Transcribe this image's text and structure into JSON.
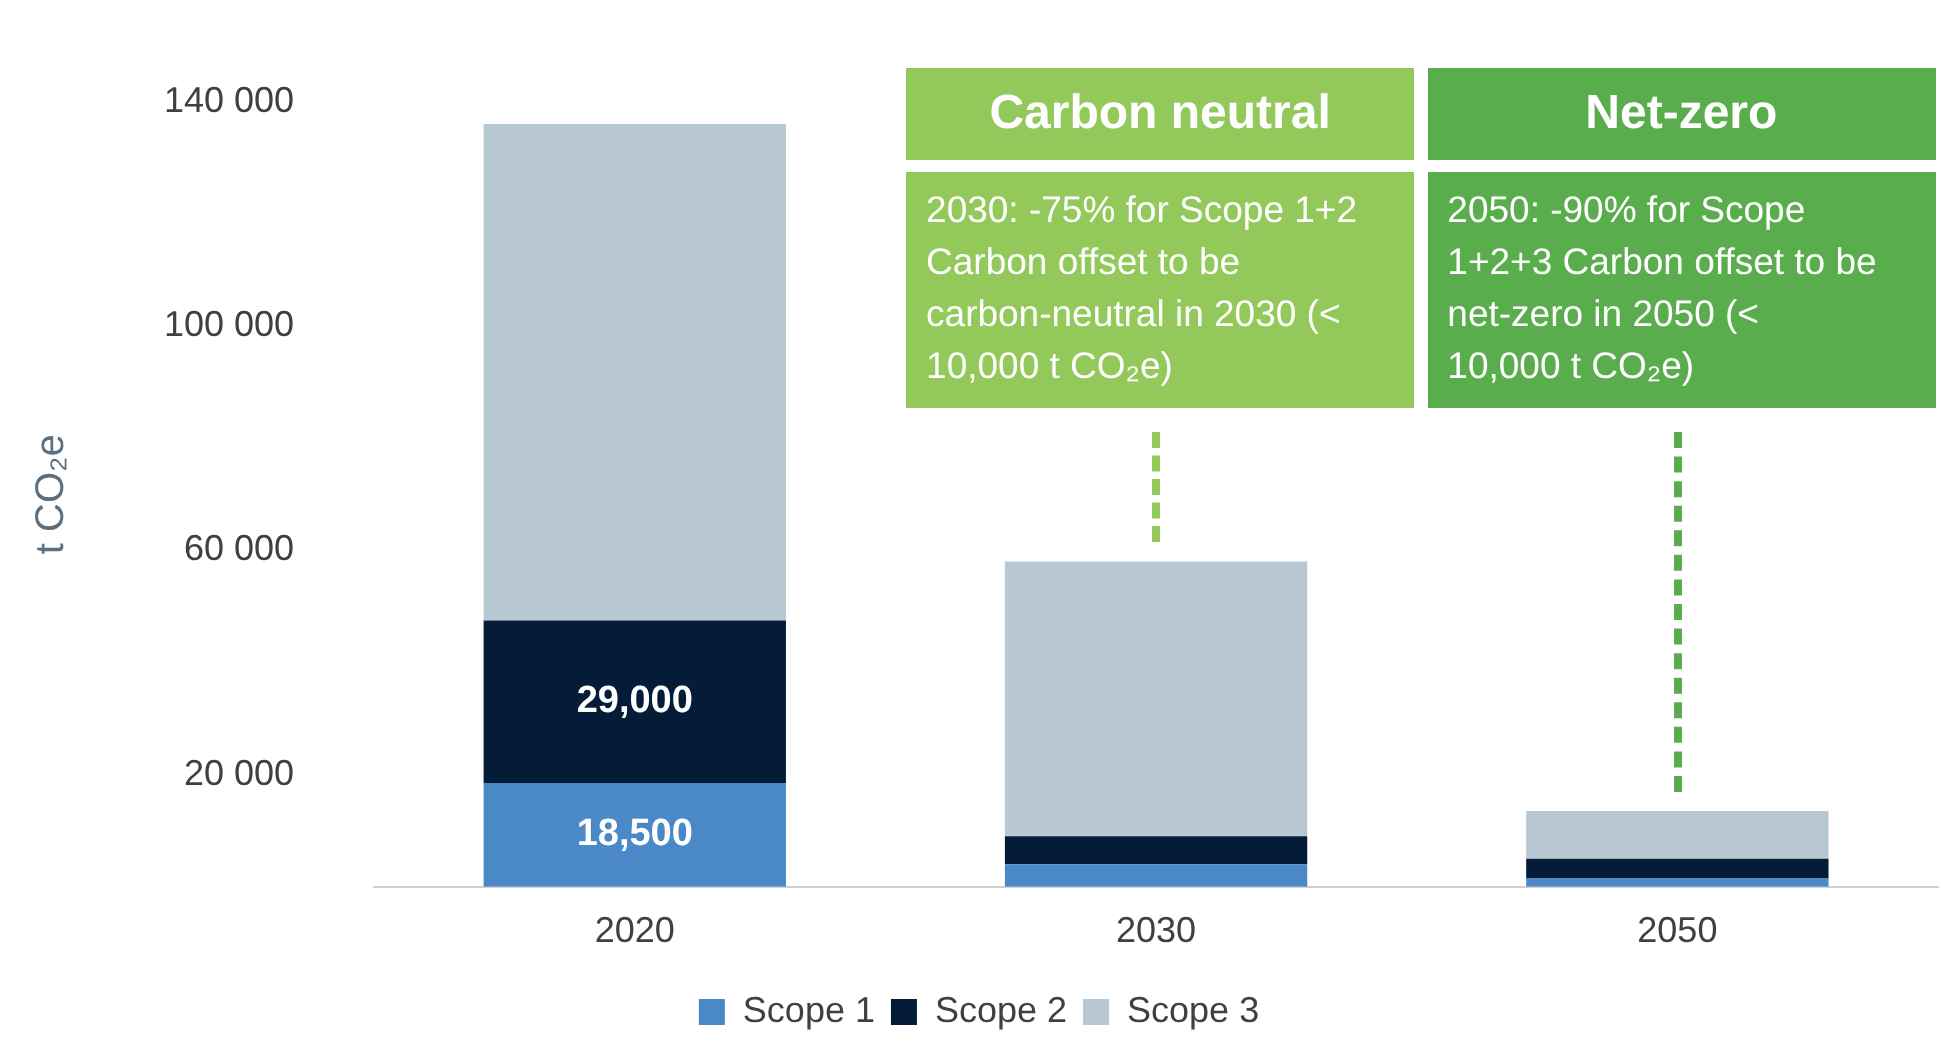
{
  "chart_data": {
    "type": "bar",
    "stacked": true,
    "ylabel": "t CO₂e",
    "categories": [
      "2020",
      "2030",
      "2050"
    ],
    "series": [
      {
        "name": "Scope 1",
        "color": "#4a88c7",
        "values": [
          18500,
          4000,
          1500
        ],
        "value_labels": [
          "18,500",
          null,
          null
        ]
      },
      {
        "name": "Scope 2",
        "color": "#041c38",
        "values": [
          29000,
          5000,
          3500
        ],
        "value_labels": [
          "29,000",
          null,
          null
        ]
      },
      {
        "name": "Scope 3",
        "color": "#b7c8d2",
        "values": [
          88500,
          49000,
          8500
        ]
      }
    ],
    "ylim": [
      0,
      140000
    ],
    "yticks": [
      {
        "value": 20000,
        "label": "20 000"
      },
      {
        "value": 60000,
        "label": "60 000"
      },
      {
        "value": 100000,
        "label": "100 000"
      },
      {
        "value": 140000,
        "label": "140 000"
      }
    ],
    "grid": false,
    "legend": "bottom",
    "annotations": [
      "Carbon neutral",
      "2030: -75% for Scope 1+2 Carbon offset to be carbon-neutral in 2030 (< 10,000 t CO₂e)",
      "Net-zero",
      "2050: -90% for Scope 1+2+3 Carbon offset to be net-zero in 2050 (< 10,000 t CO₂e)"
    ]
  }
}
